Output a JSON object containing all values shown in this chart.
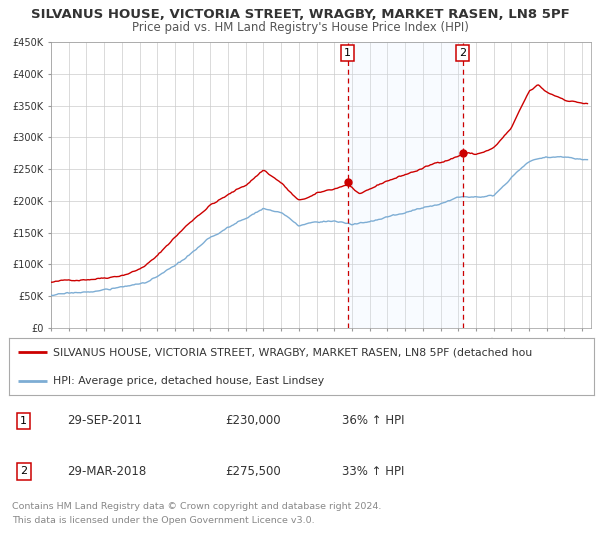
{
  "title": "SILVANUS HOUSE, VICTORIA STREET, WRAGBY, MARKET RASEN, LN8 5PF",
  "subtitle": "Price paid vs. HM Land Registry's House Price Index (HPI)",
  "xmin": 1995.0,
  "xmax": 2025.5,
  "ymin": 0,
  "ymax": 450000,
  "yticks": [
    0,
    50000,
    100000,
    150000,
    200000,
    250000,
    300000,
    350000,
    400000,
    450000
  ],
  "sale1_x": 2011.75,
  "sale1_y": 230000,
  "sale2_x": 2018.25,
  "sale2_y": 275500,
  "vline1_x": 2011.75,
  "vline2_x": 2018.25,
  "annotation1_date": "29-SEP-2011",
  "annotation1_price": "£230,000",
  "annotation1_hpi": "36% ↑ HPI",
  "annotation2_date": "29-MAR-2018",
  "annotation2_price": "£275,500",
  "annotation2_hpi": "33% ↑ HPI",
  "line1_color": "#cc0000",
  "line2_color": "#7dadd4",
  "dot_color": "#cc0000",
  "vline_color": "#cc0000",
  "shade_color": "#ddeeff",
  "grid_color": "#cccccc",
  "background_color": "#ffffff",
  "legend1_label": "SILVANUS HOUSE, VICTORIA STREET, WRAGBY, MARKET RASEN, LN8 5PF (detached hou",
  "legend2_label": "HPI: Average price, detached house, East Lindsey",
  "footer1": "Contains HM Land Registry data © Crown copyright and database right 2024.",
  "footer2": "This data is licensed under the Open Government Licence v3.0.",
  "title_fontsize": 9.5,
  "subtitle_fontsize": 8.5,
  "tick_fontsize": 7,
  "legend_fontsize": 7.8,
  "footer_fontsize": 6.8
}
